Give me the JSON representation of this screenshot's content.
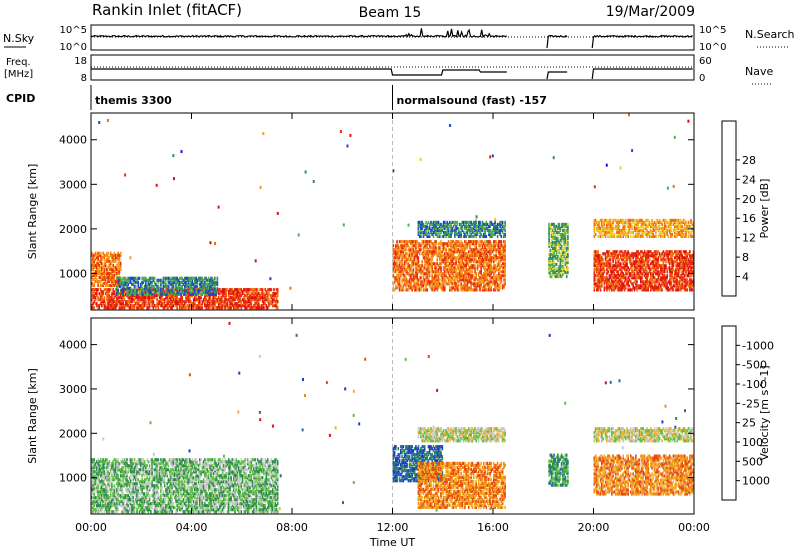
{
  "header": {
    "station": "Rankin Inlet (fitACF)",
    "beam": "Beam 15",
    "date": "19/Mar/2009"
  },
  "top_panels": {
    "nsky_label": "N.Sky",
    "nsky_ticks": [
      "10^5",
      "10^0"
    ],
    "nsearch_label": "N.Search",
    "freq_label": "Freq.",
    "freq_unit": "[MHz]",
    "freq_ticks": [
      "18",
      "8"
    ],
    "nave_label": "Nave",
    "nave_ticks": [
      "60",
      "0"
    ],
    "cpid_label": "CPID",
    "cpid_programs": [
      {
        "name": "themis 3300",
        "start_hour": 0
      },
      {
        "name": "normalsound (fast) -157",
        "start_hour": 12
      }
    ]
  },
  "x_axis": {
    "label": "Time UT",
    "ticks": [
      "00:00",
      "04:00",
      "08:00",
      "12:00",
      "16:00",
      "20:00",
      "00:00"
    ],
    "range_hours": [
      0,
      24
    ]
  },
  "chart_data": [
    {
      "type": "heatmap",
      "panel": "power",
      "ylabel": "Slant Range [km]",
      "yticks": [
        1000,
        2000,
        3000,
        4000
      ],
      "ylim": [
        180,
        4600
      ],
      "xlim": [
        0,
        24
      ],
      "data_gaps_hours": [
        [
          16.6,
          18.2
        ],
        [
          19.0,
          20.0
        ]
      ],
      "colorbar": {
        "label": "Power [dB]",
        "ticks": [
          "4",
          "8",
          "12",
          "16",
          "20",
          "24",
          "28"
        ],
        "colors": [
          "#1414f0",
          "#1e46c8",
          "#2f8a60",
          "#4fb050",
          "#f0d020",
          "#f5a020",
          "#f07010",
          "#e83010",
          "#e01010"
        ]
      },
      "echo_regions": [
        {
          "t": [
            0.0,
            7.4
          ],
          "r": [
            200,
            650
          ],
          "level": 7
        },
        {
          "t": [
            0.0,
            1.2
          ],
          "r": [
            700,
            1450
          ],
          "level": 6
        },
        {
          "t": [
            1.0,
            5.0
          ],
          "r": [
            500,
            900
          ],
          "level": 2
        },
        {
          "t": [
            12.0,
            16.5
          ],
          "r": [
            600,
            1700
          ],
          "level": 6
        },
        {
          "t": [
            13.0,
            16.5
          ],
          "r": [
            1800,
            2150
          ],
          "level": 2
        },
        {
          "t": [
            18.2,
            19.0
          ],
          "r": [
            900,
            2100
          ],
          "level": 3
        },
        {
          "t": [
            20.0,
            24.0
          ],
          "r": [
            600,
            1500
          ],
          "level": 7
        },
        {
          "t": [
            20.0,
            24.0
          ],
          "r": [
            1800,
            2200
          ],
          "level": 5
        }
      ]
    },
    {
      "type": "heatmap",
      "panel": "velocity",
      "ylabel": "Slant Range [km]",
      "yticks": [
        1000,
        2000,
        3000,
        4000
      ],
      "ylim": [
        180,
        4600
      ],
      "xlim": [
        0,
        24
      ],
      "data_gaps_hours": [
        [
          16.6,
          18.2
        ],
        [
          19.0,
          20.0
        ]
      ],
      "colorbar": {
        "label": "Velocity [m s^-1]",
        "ticks": [
          "1000",
          "500",
          "100",
          "25",
          "-25",
          "-100",
          "-500",
          "-1000"
        ],
        "colors": [
          "#1a3ccc",
          "#2e6aa0",
          "#2e8a50",
          "#5cc040",
          "#c8c8c8",
          "#f0b030",
          "#f08c10",
          "#e84818",
          "#e01010"
        ]
      },
      "echo_regions": [
        {
          "t": [
            0.0,
            7.4
          ],
          "r": [
            200,
            1400
          ],
          "level": 3
        },
        {
          "t": [
            12.0,
            14.0
          ],
          "r": [
            900,
            1700
          ],
          "level": 1
        },
        {
          "t": [
            13.0,
            16.5
          ],
          "r": [
            300,
            1300
          ],
          "level": 6
        },
        {
          "t": [
            13.0,
            16.5
          ],
          "r": [
            1800,
            2100
          ],
          "level": 4
        },
        {
          "t": [
            18.2,
            19.0
          ],
          "r": [
            800,
            1500
          ],
          "level": 2
        },
        {
          "t": [
            20.0,
            24.0
          ],
          "r": [
            600,
            1500
          ],
          "level": 6
        },
        {
          "t": [
            20.0,
            24.0
          ],
          "r": [
            1800,
            2100
          ],
          "level": 4
        }
      ]
    }
  ]
}
